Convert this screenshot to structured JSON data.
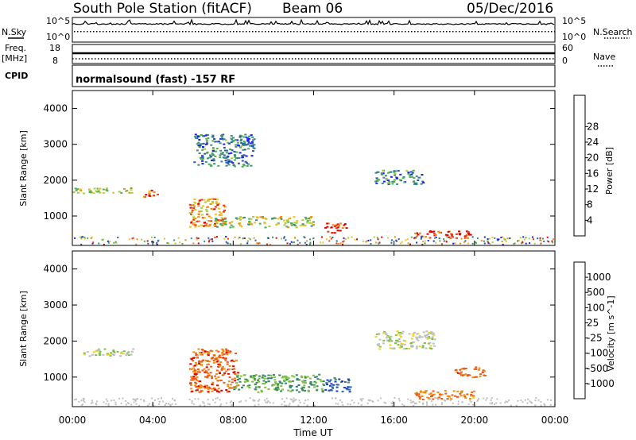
{
  "header": {
    "station": "South Pole Station (fitACF)",
    "beam": "Beam 06",
    "date": "05/Dec/2016"
  },
  "status_panels": {
    "nsky_label": "N.Sky",
    "nsky_ticks": [
      "10^5",
      "10^0"
    ],
    "nsearch_label": "N.Search",
    "nsearch_ticks": [
      "10^5",
      "10^0"
    ],
    "freq_label_1": "Freq.",
    "freq_label_2": "[MHz]",
    "freq_ticks": [
      "18",
      "8"
    ],
    "nave_label": "Nave",
    "nave_ticks": [
      "60",
      "0"
    ],
    "cpid_label": "CPID",
    "cpid_text": "normalsound (fast) -157 RF"
  },
  "chart_data": [
    {
      "type": "heatmap",
      "name": "power",
      "ylabel": "Slant Range [km]",
      "xlabel": "",
      "y_ticks": [
        "1000",
        "2000",
        "3000",
        "4000"
      ],
      "ylim": [
        180,
        4500
      ],
      "colorbar": {
        "label": "Power [dB]",
        "ticks": [
          "4",
          "8",
          "12",
          "16",
          "20",
          "24",
          "28"
        ],
        "colors": [
          "#1a1aff",
          "#2a5aa8",
          "#3a8a86",
          "#4caf50",
          "#a8cc3a",
          "#f0c020",
          "#f58a10",
          "#ee3a10",
          "#e00000"
        ]
      },
      "echo_regions": [
        {
          "t0": 0.0,
          "t1": 3.0,
          "r0": 1650,
          "r1": 1800,
          "level": 0.55
        },
        {
          "t0": 3.5,
          "t1": 4.2,
          "r0": 1550,
          "r1": 1750,
          "level": 0.9
        },
        {
          "t0": 5.8,
          "t1": 7.6,
          "r0": 700,
          "r1": 1500,
          "level": 0.75
        },
        {
          "t0": 7.0,
          "t1": 12.0,
          "r0": 700,
          "r1": 1000,
          "level": 0.5
        },
        {
          "t0": 12.5,
          "t1": 13.6,
          "r0": 550,
          "r1": 850,
          "level": 0.95
        },
        {
          "t0": 17.0,
          "t1": 19.8,
          "r0": 400,
          "r1": 600,
          "level": 0.95
        },
        {
          "t0": 15.0,
          "t1": 17.5,
          "r0": 1900,
          "r1": 2300,
          "level": 0.25
        },
        {
          "t0": 6.0,
          "t1": 9.0,
          "r0": 2400,
          "r1": 3300,
          "level": 0.2
        }
      ]
    },
    {
      "type": "heatmap",
      "name": "velocity",
      "ylabel": "Slant Range [km]",
      "xlabel": "Time UT",
      "x_ticks": [
        "00:00",
        "04:00",
        "08:00",
        "12:00",
        "16:00",
        "20:00",
        "00:00"
      ],
      "xlim": [
        0,
        24
      ],
      "y_ticks": [
        "1000",
        "2000",
        "3000",
        "4000"
      ],
      "ylim": [
        180,
        4500
      ],
      "colorbar": {
        "label": "Velocity [m s^-1]",
        "ticks": [
          "1000",
          "500",
          "100",
          "25",
          "-25",
          "-100",
          "-500",
          "-1000"
        ],
        "colors": [
          "#1a3ad0",
          "#2c6aa0",
          "#3a8a60",
          "#7cc040",
          "#c0c0c0",
          "#f0d020",
          "#f58a10",
          "#f05a10",
          "#e00000"
        ]
      },
      "echo_regions": [
        {
          "t0": 5.8,
          "t1": 8.2,
          "r0": 600,
          "r1": 1800,
          "level": -0.7
        },
        {
          "t0": 8.0,
          "t1": 12.5,
          "r0": 600,
          "r1": 1100,
          "level": 0.4
        },
        {
          "t0": 12.5,
          "t1": 13.8,
          "r0": 600,
          "r1": 1000,
          "level": 0.8
        },
        {
          "t0": 17.0,
          "t1": 20.0,
          "r0": 400,
          "r1": 650,
          "level": -0.6
        },
        {
          "t0": 19.0,
          "t1": 20.5,
          "r0": 1000,
          "r1": 1300,
          "level": -0.7
        },
        {
          "t0": 0.5,
          "t1": 3.0,
          "r0": 1600,
          "r1": 1800,
          "level": 0.0
        },
        {
          "t0": 15.0,
          "t1": 18.0,
          "r0": 1800,
          "r1": 2300,
          "level": 0.0
        }
      ]
    }
  ]
}
